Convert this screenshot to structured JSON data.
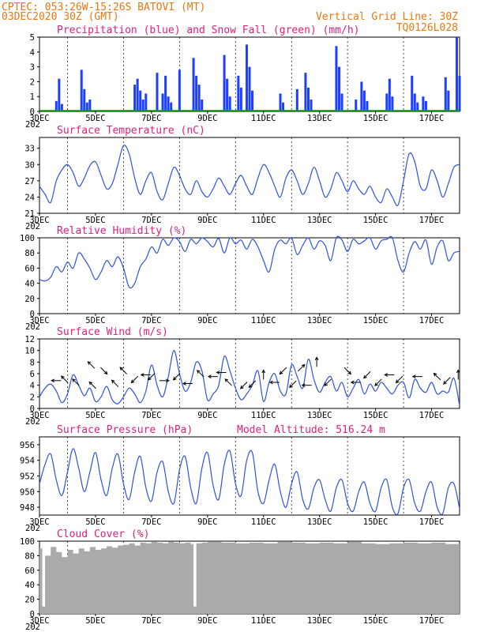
{
  "header": {
    "line1_left": "CPTEC:  053:26W-15:26S  BATOVI (MT)",
    "line2_left": "03DEC2020 30Z (GMT)",
    "line2_right": "Vertical Grid Line: 30Z",
    "line3_right": "TQ0126L028",
    "stray_year_label": "202"
  },
  "x_axis": {
    "tick_labels": [
      "3DEC",
      "5DEC",
      "7DEC",
      "9DEC",
      "11DEC",
      "13DEC",
      "15DEC",
      "17DEC"
    ],
    "start_day": 3,
    "end_day": 18
  },
  "colors": {
    "header": "#e8780e",
    "title": "#e0207a",
    "precip": "#1f3fff",
    "snow": "#00aa00",
    "line": "#3050e0",
    "cloud": "#aaaaaa",
    "arrow": "#000000"
  },
  "chart_data": [
    {
      "type": "bar",
      "title": "Precipitation (blue) and Snow Fall (green) (mm/h)",
      "ylim": [
        0,
        5
      ],
      "y_ticks": [
        "0",
        "1",
        "2",
        "3",
        "4",
        "5"
      ],
      "series": [
        {
          "name": "Precipitation",
          "x": [
            3.6,
            3.7,
            3.8,
            4.5,
            4.6,
            4.7,
            4.8,
            6.4,
            6.5,
            6.6,
            6.7,
            6.8,
            7.2,
            7.4,
            7.5,
            7.6,
            7.7,
            8.0,
            8.5,
            8.6,
            8.7,
            8.8,
            9.6,
            9.7,
            9.8,
            10.1,
            10.2,
            10.4,
            10.5,
            10.6,
            11.6,
            11.7,
            12.2,
            12.5,
            12.6,
            12.7,
            13.6,
            13.7,
            13.8,
            14.3,
            14.5,
            14.6,
            14.7,
            15.4,
            15.5,
            15.6,
            16.3,
            16.4,
            16.5,
            16.7,
            16.8,
            17.5,
            17.6,
            17.9,
            18.0
          ],
          "values": [
            0.7,
            2.2,
            0.5,
            2.8,
            1.5,
            0.6,
            0.8,
            1.8,
            2.2,
            1.4,
            0.8,
            1.2,
            2.6,
            1.2,
            2.4,
            1.0,
            0.6,
            2.8,
            3.6,
            2.4,
            1.8,
            0.8,
            3.8,
            2.2,
            1.0,
            2.4,
            1.6,
            4.5,
            3.0,
            1.4,
            1.2,
            0.6,
            1.5,
            2.6,
            1.6,
            0.8,
            4.4,
            3.0,
            1.2,
            0.8,
            2.0,
            1.4,
            0.7,
            1.2,
            2.2,
            1.0,
            2.4,
            1.2,
            0.6,
            1.0,
            0.7,
            2.3,
            1.4,
            5.0,
            2.4
          ]
        },
        {
          "name": "Snow Fall",
          "x": [],
          "values": []
        }
      ]
    },
    {
      "type": "line",
      "title": "Surface Temperature (nC)",
      "ylim": [
        21,
        35
      ],
      "y_ticks": [
        "21",
        "24",
        "27",
        "30",
        "33"
      ],
      "x": [
        3.0,
        3.2,
        3.4,
        3.6,
        3.8,
        4.0,
        4.2,
        4.4,
        4.6,
        4.8,
        5.0,
        5.2,
        5.4,
        5.6,
        5.8,
        6.0,
        6.2,
        6.4,
        6.6,
        6.8,
        7.0,
        7.2,
        7.4,
        7.6,
        7.8,
        8.0,
        8.2,
        8.4,
        8.6,
        8.8,
        9.0,
        9.2,
        9.4,
        9.6,
        9.8,
        10.0,
        10.2,
        10.4,
        10.6,
        10.8,
        11.0,
        11.2,
        11.4,
        11.6,
        11.8,
        12.0,
        12.2,
        12.4,
        12.6,
        12.8,
        13.0,
        13.2,
        13.4,
        13.6,
        13.8,
        14.0,
        14.2,
        14.4,
        14.6,
        14.8,
        15.0,
        15.2,
        15.4,
        15.6,
        15.8,
        16.0,
        16.2,
        16.4,
        16.6,
        16.8,
        17.0,
        17.2,
        17.4,
        17.6,
        17.8,
        18.0
      ],
      "values": [
        26.0,
        24.5,
        23.0,
        27.0,
        29.0,
        30.0,
        28.5,
        26.0,
        27.5,
        29.8,
        30.5,
        28.0,
        25.5,
        26.5,
        30.0,
        33.5,
        32.0,
        27.5,
        24.5,
        27.0,
        28.5,
        25.0,
        23.5,
        26.5,
        29.5,
        28.0,
        25.5,
        24.5,
        27.0,
        25.0,
        24.0,
        25.5,
        27.5,
        26.0,
        24.5,
        26.5,
        28.0,
        26.0,
        24.5,
        27.5,
        30.0,
        28.5,
        26.0,
        24.0,
        27.5,
        29.0,
        27.0,
        24.5,
        26.5,
        29.5,
        27.0,
        24.0,
        25.5,
        28.5,
        27.0,
        25.0,
        27.0,
        25.5,
        24.5,
        26.0,
        24.0,
        23.0,
        25.5,
        24.0,
        22.5,
        27.0,
        32.0,
        30.5,
        26.0,
        25.5,
        29.0,
        27.0,
        24.0,
        26.5,
        29.5,
        30.0
      ]
    },
    {
      "type": "line",
      "title": "Relative Humidity (%)",
      "ylim": [
        0,
        100
      ],
      "y_ticks": [
        "0",
        "20",
        "40",
        "60",
        "80",
        "100"
      ],
      "x": [
        3.0,
        3.2,
        3.4,
        3.6,
        3.8,
        4.0,
        4.2,
        4.4,
        4.6,
        4.8,
        5.0,
        5.2,
        5.4,
        5.6,
        5.8,
        6.0,
        6.2,
        6.4,
        6.6,
        6.8,
        7.0,
        7.2,
        7.4,
        7.6,
        7.8,
        8.0,
        8.2,
        8.4,
        8.6,
        8.8,
        9.0,
        9.2,
        9.4,
        9.6,
        9.8,
        10.0,
        10.2,
        10.4,
        10.6,
        10.8,
        11.0,
        11.2,
        11.4,
        11.6,
        11.8,
        12.0,
        12.2,
        12.4,
        12.6,
        12.8,
        13.0,
        13.2,
        13.4,
        13.6,
        13.8,
        14.0,
        14.2,
        14.4,
        14.6,
        14.8,
        15.0,
        15.2,
        15.4,
        15.6,
        15.8,
        16.0,
        16.2,
        16.4,
        16.6,
        16.8,
        17.0,
        17.2,
        17.4,
        17.6,
        17.8,
        18.0
      ],
      "values": [
        45,
        43,
        48,
        62,
        55,
        68,
        60,
        80,
        72,
        60,
        45,
        55,
        70,
        62,
        75,
        60,
        35,
        40,
        62,
        72,
        88,
        80,
        98,
        90,
        100,
        95,
        82,
        98,
        92,
        100,
        95,
        88,
        99,
        80,
        100,
        92,
        97,
        85,
        98,
        88,
        70,
        55,
        85,
        97,
        92,
        100,
        78,
        90,
        100,
        85,
        96,
        90,
        70,
        100,
        97,
        82,
        98,
        92,
        96,
        100,
        85,
        96,
        98,
        100,
        70,
        55,
        80,
        95,
        85,
        97,
        65,
        88,
        96,
        70,
        80,
        82
      ]
    },
    {
      "type": "line",
      "title": "Surface Wind (m/s)",
      "ylim": [
        0,
        12
      ],
      "y_ticks": [
        "0",
        "2",
        "4",
        "6",
        "8",
        "10",
        "12"
      ],
      "x": [
        3.0,
        3.2,
        3.4,
        3.6,
        3.8,
        4.0,
        4.2,
        4.4,
        4.6,
        4.8,
        5.0,
        5.2,
        5.4,
        5.6,
        5.8,
        6.0,
        6.2,
        6.4,
        6.6,
        6.8,
        7.0,
        7.2,
        7.4,
        7.6,
        7.8,
        8.0,
        8.2,
        8.4,
        8.6,
        8.8,
        9.0,
        9.2,
        9.4,
        9.6,
        9.8,
        10.0,
        10.2,
        10.4,
        10.6,
        10.8,
        11.0,
        11.2,
        11.4,
        11.6,
        11.8,
        12.0,
        12.2,
        12.4,
        12.6,
        12.8,
        13.0,
        13.2,
        13.4,
        13.6,
        13.8,
        14.0,
        14.2,
        14.4,
        14.6,
        14.8,
        15.0,
        15.2,
        15.4,
        15.6,
        15.8,
        16.0,
        16.2,
        16.4,
        16.6,
        16.8,
        17.0,
        17.2,
        17.4,
        17.6,
        17.8,
        18.0
      ],
      "values": [
        2.0,
        3.5,
        4.2,
        3.0,
        1.0,
        2.5,
        5.8,
        4.0,
        2.2,
        3.5,
        1.2,
        2.0,
        3.8,
        1.5,
        0.8,
        2.0,
        3.5,
        2.5,
        1.0,
        3.0,
        7.5,
        4.0,
        2.0,
        5.5,
        10.0,
        6.0,
        3.0,
        4.5,
        8.0,
        6.5,
        1.5,
        2.5,
        4.0,
        9.0,
        6.5,
        3.5,
        1.5,
        2.5,
        4.0,
        6.5,
        1.2,
        4.5,
        6.0,
        3.0,
        2.5,
        7.5,
        5.5,
        3.5,
        8.5,
        5.0,
        2.8,
        4.5,
        5.5,
        3.0,
        4.5,
        2.0,
        3.5,
        5.0,
        2.5,
        4.2,
        3.0,
        4.5,
        3.5,
        2.5,
        4.0,
        4.5,
        1.8,
        5.0,
        3.5,
        2.8,
        4.5,
        2.5,
        3.0,
        2.8,
        5.2,
        0.5
      ],
      "arrows": [
        {
          "x": 3.6,
          "y": 4.8,
          "dir": "left"
        },
        {
          "x": 3.9,
          "y": 5.0,
          "dir": "upleft"
        },
        {
          "x": 4.3,
          "y": 4.5,
          "dir": "upleft"
        },
        {
          "x": 4.85,
          "y": 7.5,
          "dir": "upleft"
        },
        {
          "x": 4.9,
          "y": 4.0,
          "dir": "upleft"
        },
        {
          "x": 5.3,
          "y": 6.5,
          "dir": "downright"
        },
        {
          "x": 5.7,
          "y": 4.3,
          "dir": "upleft"
        },
        {
          "x": 6.0,
          "y": 6.5,
          "dir": "upleft"
        },
        {
          "x": 6.4,
          "y": 5.0,
          "dir": "downleft"
        },
        {
          "x": 6.8,
          "y": 5.8,
          "dir": "left"
        },
        {
          "x": 7.0,
          "y": 5.5,
          "dir": "downleft"
        },
        {
          "x": 7.45,
          "y": 4.8,
          "dir": "right"
        },
        {
          "x": 7.9,
          "y": 5.5,
          "dir": "downleft"
        },
        {
          "x": 8.3,
          "y": 4.3,
          "dir": "left"
        },
        {
          "x": 8.75,
          "y": 6.0,
          "dir": "upleft"
        },
        {
          "x": 9.2,
          "y": 5.5,
          "dir": "left"
        },
        {
          "x": 9.5,
          "y": 6.2,
          "dir": "left"
        },
        {
          "x": 9.75,
          "y": 4.5,
          "dir": "upleft"
        },
        {
          "x": 10.3,
          "y": 4.0,
          "dir": "downleft"
        },
        {
          "x": 10.6,
          "y": 4.2,
          "dir": "downleft"
        },
        {
          "x": 11.0,
          "y": 5.8,
          "dir": "up"
        },
        {
          "x": 11.4,
          "y": 4.5,
          "dir": "left"
        },
        {
          "x": 11.7,
          "y": 6.5,
          "dir": "downleft"
        },
        {
          "x": 12.05,
          "y": 4.2,
          "dir": "downleft"
        },
        {
          "x": 12.35,
          "y": 7.0,
          "dir": "upright"
        },
        {
          "x": 12.55,
          "y": 4.0,
          "dir": "left"
        },
        {
          "x": 12.9,
          "y": 8.0,
          "dir": "up"
        },
        {
          "x": 13.3,
          "y": 4.5,
          "dir": "downleft"
        },
        {
          "x": 14.0,
          "y": 6.5,
          "dir": "downright"
        },
        {
          "x": 14.3,
          "y": 4.5,
          "dir": "left"
        },
        {
          "x": 14.7,
          "y": 5.8,
          "dir": "downleft"
        },
        {
          "x": 15.1,
          "y": 4.5,
          "dir": "downleft"
        },
        {
          "x": 15.5,
          "y": 5.8,
          "dir": "left"
        },
        {
          "x": 15.85,
          "y": 5.0,
          "dir": "downleft"
        },
        {
          "x": 16.5,
          "y": 5.5,
          "dir": "left"
        },
        {
          "x": 17.2,
          "y": 5.5,
          "dir": "upleft"
        },
        {
          "x": 17.55,
          "y": 4.8,
          "dir": "downleft"
        },
        {
          "x": 17.95,
          "y": 5.8,
          "dir": "up"
        }
      ]
    },
    {
      "type": "line",
      "title": "Surface Pressure (hPa)",
      "subtitle": "Model Altitude: 516.24 m",
      "ylim": [
        947,
        957
      ],
      "y_ticks": [
        "948",
        "950",
        "952",
        "954",
        "956"
      ],
      "x": [
        3.0,
        3.2,
        3.4,
        3.6,
        3.8,
        4.0,
        4.2,
        4.4,
        4.6,
        4.8,
        5.0,
        5.2,
        5.4,
        5.6,
        5.8,
        6.0,
        6.2,
        6.4,
        6.6,
        6.8,
        7.0,
        7.2,
        7.4,
        7.6,
        7.8,
        8.0,
        8.2,
        8.4,
        8.6,
        8.8,
        9.0,
        9.2,
        9.4,
        9.6,
        9.8,
        10.0,
        10.2,
        10.4,
        10.6,
        10.8,
        11.0,
        11.2,
        11.4,
        11.6,
        11.8,
        12.0,
        12.2,
        12.4,
        12.6,
        12.8,
        13.0,
        13.2,
        13.4,
        13.6,
        13.8,
        14.0,
        14.2,
        14.4,
        14.6,
        14.8,
        15.0,
        15.2,
        15.4,
        15.6,
        15.8,
        16.0,
        16.2,
        16.4,
        16.6,
        16.8,
        17.0,
        17.2,
        17.4,
        17.6,
        17.8,
        18.0
      ],
      "values": [
        951.0,
        953.5,
        954.8,
        951.5,
        949.5,
        952.5,
        955.5,
        953.0,
        950.0,
        952.5,
        955.0,
        951.5,
        949.5,
        953.0,
        954.8,
        951.0,
        949.0,
        952.5,
        954.5,
        950.5,
        948.8,
        952.5,
        953.8,
        950.0,
        948.5,
        952.8,
        954.5,
        950.5,
        948.5,
        953.0,
        955.0,
        950.8,
        949.0,
        953.5,
        955.2,
        951.0,
        949.5,
        954.0,
        955.0,
        950.0,
        948.5,
        951.5,
        953.5,
        950.0,
        948.0,
        951.0,
        952.5,
        949.0,
        947.8,
        950.5,
        951.5,
        949.0,
        947.5,
        950.5,
        951.5,
        948.5,
        947.5,
        950.0,
        951.2,
        948.5,
        947.5,
        950.5,
        951.5,
        948.0,
        947.2,
        950.5,
        951.5,
        948.5,
        947.5,
        950.0,
        951.2,
        948.0,
        947.2,
        950.5,
        951.0,
        947.8
      ]
    },
    {
      "type": "area",
      "title": "Cloud Cover (%)",
      "ylim": [
        0,
        100
      ],
      "y_ticks": [
        "0",
        "20",
        "40",
        "60",
        "80",
        "100"
      ],
      "x": [
        3.0,
        3.1,
        3.2,
        3.4,
        3.6,
        3.8,
        4.0,
        4.2,
        4.4,
        4.6,
        4.8,
        5.0,
        5.2,
        5.4,
        5.6,
        5.8,
        6.0,
        6.2,
        6.4,
        6.6,
        6.8,
        7.0,
        7.2,
        7.4,
        7.6,
        7.8,
        8.0,
        8.2,
        8.4,
        8.5,
        8.6,
        8.8,
        9.0,
        9.5,
        10.0,
        10.5,
        11.0,
        11.5,
        12.0,
        12.5,
        13.0,
        13.5,
        14.0,
        14.5,
        15.0,
        15.5,
        16.0,
        16.5,
        17.0,
        17.5,
        18.0
      ],
      "values": [
        90,
        10,
        80,
        92,
        85,
        78,
        88,
        83,
        90,
        86,
        92,
        88,
        90,
        93,
        91,
        94,
        95,
        97,
        94,
        98,
        97,
        99,
        98,
        97,
        99,
        98,
        97,
        98,
        96,
        10,
        97,
        98,
        99,
        98,
        97,
        98,
        97,
        99,
        98,
        97,
        98,
        97,
        99,
        97,
        96,
        97,
        98,
        97,
        98,
        96,
        97
      ]
    }
  ]
}
